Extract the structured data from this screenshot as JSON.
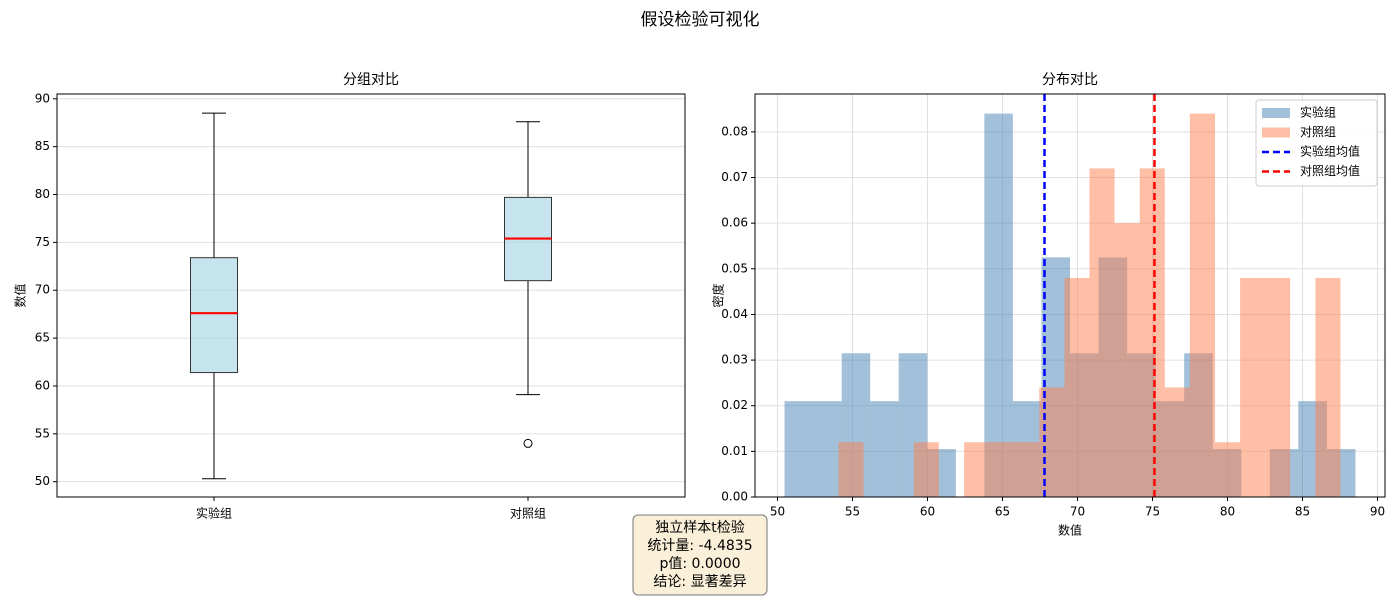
{
  "title": "假设检验可视化",
  "annotation": {
    "lines": [
      "独立样本t检验",
      "统计量: -4.4835",
      "p值: 0.0000",
      "结论: 显著差异"
    ]
  },
  "chart_data": [
    {
      "type": "box",
      "title": "分组对比",
      "y_label": "数值",
      "categories": [
        "实验组",
        "对照组"
      ],
      "boxes": [
        {
          "whislo": 50.3,
          "q1": 61.4,
          "med": 67.6,
          "q3": 73.4,
          "whishi": 88.5,
          "fliers": []
        },
        {
          "whislo": 59.1,
          "q1": 71.0,
          "med": 75.4,
          "q3": 79.7,
          "whishi": 87.6,
          "fliers": [
            54.0
          ]
        }
      ],
      "box_color": "#add8e6",
      "alpha": 0.7,
      "median_color": "#ff0000",
      "ylim": [
        48.4,
        90.5
      ],
      "yticks": [
        50,
        55,
        60,
        65,
        70,
        75,
        80,
        85,
        90
      ],
      "grid": "y"
    },
    {
      "type": "histogram",
      "title": "分布对比",
      "x_label": "数值",
      "y_label": "密度",
      "series": [
        {
          "name": "实验组",
          "color": "#4682b4",
          "alpha": 0.5,
          "bins": [
            50.47,
            52.37,
            54.28,
            56.18,
            58.08,
            59.99,
            61.89,
            63.79,
            65.69,
            67.6,
            69.5,
            71.4,
            73.31,
            75.21,
            77.11,
            79.02,
            80.92,
            82.82,
            84.72,
            86.63,
            88.53
          ],
          "values": [
            0.021,
            0.021,
            0.0315,
            0.021,
            0.0315,
            0.0105,
            0,
            0.084,
            0.021,
            0.0525,
            0.0315,
            0.0525,
            0.0315,
            0.021,
            0.0315,
            0.0105,
            0,
            0.0105,
            0.021,
            0.0105
          ]
        },
        {
          "name": "对照组",
          "color": "#ff7f50",
          "alpha": 0.5,
          "bins": [
            54.07,
            55.74,
            57.42,
            59.09,
            60.76,
            62.44,
            64.11,
            65.78,
            67.45,
            69.13,
            70.8,
            72.47,
            74.15,
            75.82,
            77.49,
            79.17,
            80.84,
            82.51,
            84.18,
            85.86,
            87.53
          ],
          "values": [
            0.012,
            0,
            0,
            0.012,
            0,
            0.012,
            0.012,
            0.012,
            0.024,
            0.048,
            0.072,
            0.06,
            0.072,
            0.024,
            0.084,
            0.012,
            0.048,
            0.048,
            0,
            0.048
          ]
        }
      ],
      "lines": [
        {
          "name": "实验组均值",
          "color": "#0000ff",
          "value": 67.8
        },
        {
          "name": "对照组均值",
          "color": "#ff0000",
          "value": 75.13
        }
      ],
      "xlim": [
        48.5,
        90.5
      ],
      "xticks": [
        50,
        55,
        60,
        65,
        70,
        75,
        80,
        85,
        90
      ],
      "ylim": [
        0,
        0.0883
      ],
      "yticks": [
        {
          "value": 0,
          "label": "0.00"
        },
        {
          "value": 0.01,
          "label": "0.01"
        },
        {
          "value": 0.02,
          "label": "0.02"
        },
        {
          "value": 0.03,
          "label": "0.03"
        },
        {
          "value": 0.04,
          "label": "0.04"
        },
        {
          "value": 0.05,
          "label": "0.05"
        },
        {
          "value": 0.06,
          "label": "0.06"
        },
        {
          "value": 0.07,
          "label": "0.07"
        },
        {
          "value": 0.08,
          "label": "0.08"
        }
      ],
      "grid": "both",
      "legend": "upper right"
    }
  ]
}
